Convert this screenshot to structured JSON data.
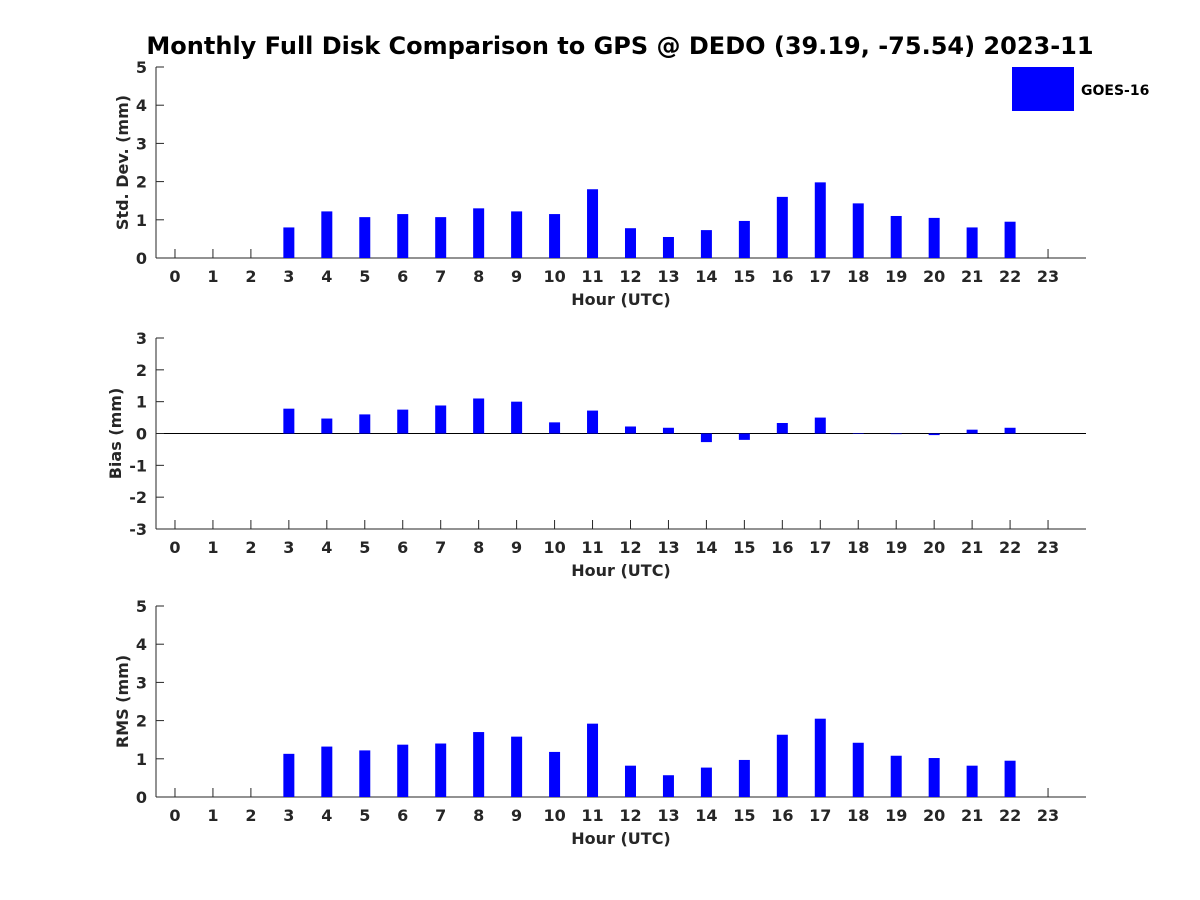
{
  "title": "Monthly Full Disk Comparison to GPS @ DEDO (39.19, -75.54) 2023-11",
  "legend": {
    "label": "GOES-16",
    "color": "#0000ff"
  },
  "chart_data": [
    {
      "type": "bar",
      "ylabel": "Std. Dev. (mm)",
      "xlabel": "Hour (UTC)",
      "ylim": [
        0,
        5
      ],
      "yticks": [
        0,
        1,
        2,
        3,
        4,
        5
      ],
      "categories": [
        "0",
        "1",
        "2",
        "3",
        "4",
        "5",
        "6",
        "7",
        "8",
        "9",
        "10",
        "11",
        "12",
        "13",
        "14",
        "15",
        "16",
        "17",
        "18",
        "19",
        "20",
        "21",
        "22",
        "23"
      ],
      "series": [
        {
          "name": "GOES-16",
          "values": [
            null,
            null,
            null,
            0.8,
            1.22,
            1.07,
            1.15,
            1.07,
            1.3,
            1.22,
            1.15,
            1.8,
            0.78,
            0.55,
            0.73,
            0.97,
            1.6,
            1.98,
            1.43,
            1.1,
            1.05,
            0.8,
            0.95,
            null
          ]
        }
      ]
    },
    {
      "type": "bar",
      "ylabel": "Bias (mm)",
      "xlabel": "Hour (UTC)",
      "ylim": [
        -3,
        3
      ],
      "yticks": [
        -3,
        -2,
        -1,
        0,
        1,
        2,
        3
      ],
      "categories": [
        "0",
        "1",
        "2",
        "3",
        "4",
        "5",
        "6",
        "7",
        "8",
        "9",
        "10",
        "11",
        "12",
        "13",
        "14",
        "15",
        "16",
        "17",
        "18",
        "19",
        "20",
        "21",
        "22",
        "23"
      ],
      "series": [
        {
          "name": "GOES-16",
          "values": [
            null,
            null,
            null,
            0.78,
            0.47,
            0.6,
            0.75,
            0.88,
            1.1,
            1.0,
            0.35,
            0.72,
            0.22,
            0.18,
            -0.27,
            -0.2,
            0.33,
            0.5,
            0.0,
            -0.02,
            -0.05,
            0.12,
            0.18,
            null
          ]
        }
      ]
    },
    {
      "type": "bar",
      "ylabel": "RMS (mm)",
      "xlabel": "Hour (UTC)",
      "ylim": [
        0,
        5
      ],
      "yticks": [
        0,
        1,
        2,
        3,
        4,
        5
      ],
      "categories": [
        "0",
        "1",
        "2",
        "3",
        "4",
        "5",
        "6",
        "7",
        "8",
        "9",
        "10",
        "11",
        "12",
        "13",
        "14",
        "15",
        "16",
        "17",
        "18",
        "19",
        "20",
        "21",
        "22",
        "23"
      ],
      "series": [
        {
          "name": "GOES-16",
          "values": [
            null,
            null,
            null,
            1.13,
            1.32,
            1.22,
            1.37,
            1.4,
            1.7,
            1.58,
            1.18,
            1.92,
            0.82,
            0.57,
            0.77,
            0.97,
            1.63,
            2.05,
            1.42,
            1.08,
            1.02,
            0.82,
            0.95,
            null
          ]
        }
      ]
    }
  ]
}
